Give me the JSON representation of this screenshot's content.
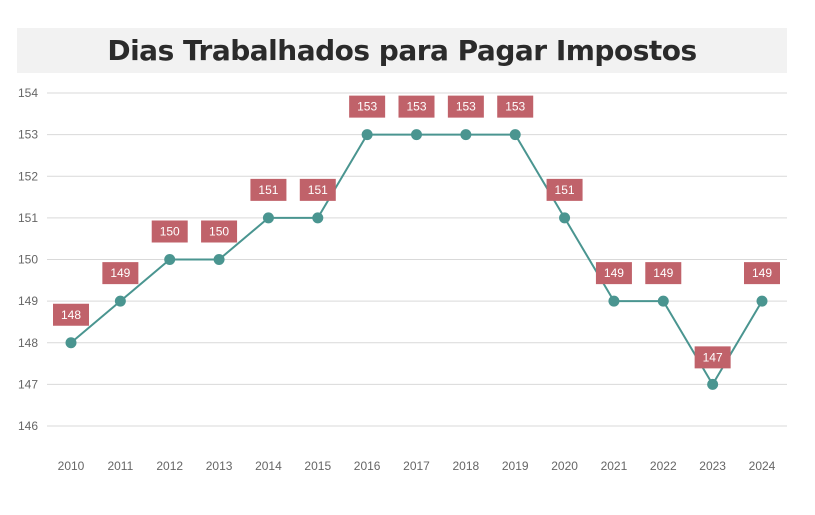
{
  "chart_data": {
    "type": "line",
    "title": "Dias Trabalhados para Pagar Impostos",
    "xlabel": "",
    "ylabel": "",
    "categories": [
      "2010",
      "2011",
      "2012",
      "2013",
      "2014",
      "2015",
      "2016",
      "2017",
      "2018",
      "2019",
      "2020",
      "2021",
      "2022",
      "2023",
      "2024"
    ],
    "series": [
      {
        "values": [
          148,
          149,
          150,
          150,
          151,
          151,
          153,
          153,
          153,
          153,
          151,
          149,
          149,
          147,
          149
        ]
      }
    ],
    "ylim": [
      146,
      154
    ],
    "yticks": [
      146,
      147,
      148,
      149,
      150,
      151,
      152,
      153,
      154
    ],
    "grid": true,
    "legend": "none",
    "colors": {
      "line": "#4a9590",
      "marker": "#4a9590",
      "label_bg": "#c0626a",
      "label_text": "#ffffff",
      "grid": "#d9d9d9",
      "tick_text": "#666666",
      "title_bg": "#f2f2f2"
    }
  }
}
